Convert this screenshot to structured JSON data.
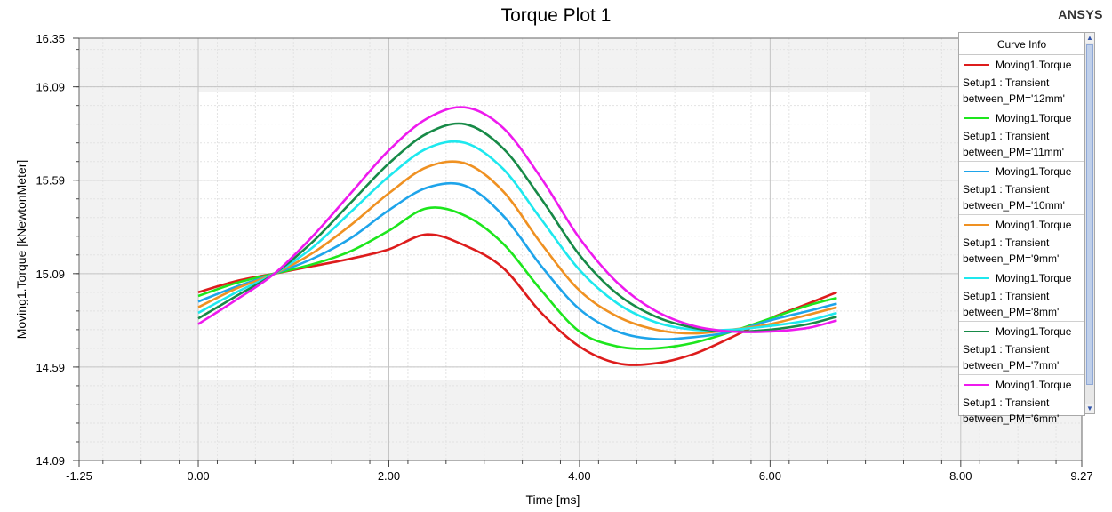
{
  "brand": "ANSYS",
  "legend": {
    "header": "Curve Info"
  },
  "chart_data": {
    "type": "line",
    "title": "Torque Plot 1",
    "xlabel": "Time [ms]",
    "ylabel": "Moving1.Torque [kNewtonMeter]",
    "xlim": [
      -1.25,
      9.27
    ],
    "ylim": [
      14.09,
      16.35
    ],
    "xticks": [
      -1.25,
      0.0,
      2.0,
      4.0,
      6.0,
      8.0,
      9.27
    ],
    "xtick_labels": [
      "-1.25",
      "0.00",
      "2.00",
      "4.00",
      "6.00",
      "8.00",
      "9.27"
    ],
    "yticks": [
      14.09,
      14.59,
      15.09,
      15.59,
      16.09,
      16.35
    ],
    "ytick_labels": [
      "14.09",
      "14.59",
      "15.09",
      "15.59",
      "16.09",
      "16.35"
    ],
    "grid": true,
    "legend_position": "right",
    "x": [
      0.0,
      0.4,
      0.8,
      1.2,
      1.6,
      2.0,
      2.4,
      2.8,
      3.2,
      3.6,
      4.0,
      4.4,
      4.8,
      5.2,
      5.6,
      6.0,
      6.4,
      6.7
    ],
    "series": [
      {
        "label": "Moving1.Torque",
        "setup": "Setup1 : Transient",
        "param": "between_PM='12mm'",
        "color": "#dd1c1c",
        "values": [
          14.99,
          15.05,
          15.09,
          15.13,
          15.17,
          15.22,
          15.3,
          15.24,
          15.12,
          14.88,
          14.7,
          14.61,
          14.61,
          14.66,
          14.75,
          14.85,
          14.93,
          14.99
        ]
      },
      {
        "label": "Moving1.Torque",
        "setup": "Setup1 : Transient",
        "param": "between_PM='11mm'",
        "color": "#1de61d",
        "values": [
          14.97,
          15.04,
          15.09,
          15.14,
          15.21,
          15.32,
          15.44,
          15.4,
          15.25,
          15.0,
          14.78,
          14.7,
          14.69,
          14.72,
          14.78,
          14.85,
          14.92,
          14.96
        ]
      },
      {
        "label": "Moving1.Torque",
        "setup": "Setup1 : Transient",
        "param": "between_PM='10mm'",
        "color": "#1ea4ea",
        "values": [
          14.94,
          15.02,
          15.09,
          15.17,
          15.28,
          15.43,
          15.55,
          15.56,
          15.4,
          15.13,
          14.9,
          14.78,
          14.74,
          14.75,
          14.78,
          14.84,
          14.89,
          14.93
        ]
      },
      {
        "label": "Moving1.Torque",
        "setup": "Setup1 : Transient",
        "param": "between_PM='9mm'",
        "color": "#ef9122",
        "values": [
          14.91,
          15.01,
          15.09,
          15.2,
          15.35,
          15.52,
          15.66,
          15.68,
          15.53,
          15.25,
          15.0,
          14.86,
          14.79,
          14.77,
          14.79,
          14.82,
          14.87,
          14.91
        ]
      },
      {
        "label": "Moving1.Torque",
        "setup": "Setup1 : Transient",
        "param": "between_PM='8mm'",
        "color": "#1ee8ee",
        "values": [
          14.88,
          14.99,
          15.09,
          15.23,
          15.42,
          15.61,
          15.76,
          15.79,
          15.65,
          15.38,
          15.11,
          14.93,
          14.83,
          14.79,
          14.79,
          14.81,
          14.84,
          14.88
        ]
      },
      {
        "label": "Moving1.Torque",
        "setup": "Setup1 : Transient",
        "param": "between_PM='7mm'",
        "color": "#178a47",
        "values": [
          14.85,
          14.97,
          15.09,
          15.26,
          15.47,
          15.68,
          15.84,
          15.89,
          15.76,
          15.49,
          15.19,
          14.98,
          14.86,
          14.8,
          14.78,
          14.79,
          14.82,
          14.86
        ]
      },
      {
        "label": "Moving1.Torque",
        "setup": "Setup1 : Transient",
        "param": "between_PM='6mm'",
        "color": "#ee1aee",
        "values": [
          14.82,
          14.95,
          15.09,
          15.29,
          15.52,
          15.75,
          15.92,
          15.98,
          15.87,
          15.6,
          15.28,
          15.04,
          14.89,
          14.81,
          14.78,
          14.78,
          14.8,
          14.84
        ]
      }
    ]
  }
}
